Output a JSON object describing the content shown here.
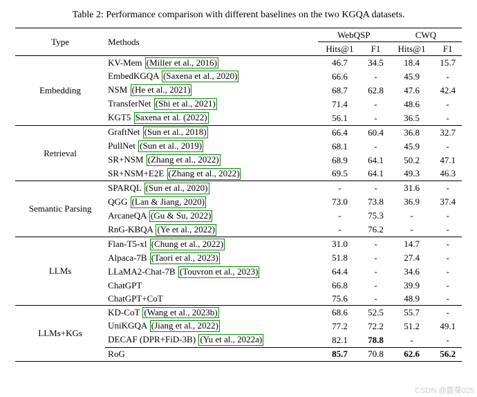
{
  "caption": "Table 2: Performance comparison with different baselines on the two KGQA datasets.",
  "header": {
    "type": "Type",
    "methods": "Methods",
    "websp": "WebQSP",
    "cwq": "CWQ",
    "hits": "Hits@1",
    "f1": "F1"
  },
  "types": {
    "embedding": "Embedding",
    "retrieval": "Retrieval",
    "semantic": "Semantic Parsing",
    "llms": "LLMs",
    "llmsKG": "LLMs+KGs"
  },
  "rows": {
    "kvmem": {
      "m": "KV-Mem",
      "c": "(Miller et al., 2016)",
      "wh": "46.7",
      "wf": "34.5",
      "ch": "18.4",
      "cf": "15.7"
    },
    "embed": {
      "m": "EmbedKGQA",
      "c": "(Saxena et al., 2020)",
      "wh": "66.6",
      "wf": "-",
      "ch": "45.9",
      "cf": "-"
    },
    "nsm": {
      "m": "NSM",
      "c": "(He et al., 2021)",
      "wh": "68.7",
      "wf": "62.8",
      "ch": "47.6",
      "cf": "42.4"
    },
    "transfer": {
      "m": "TransferNet",
      "c": "(Shi et al., 2021)",
      "wh": "71.4",
      "wf": "-",
      "ch": "48.6",
      "cf": "-"
    },
    "kgt5": {
      "m": "KGT5",
      "c": "Saxena et al. (2022)",
      "wh": "56.1",
      "wf": "-",
      "ch": "36.5",
      "cf": "-"
    },
    "graft": {
      "m": "GraftNet",
      "c": "(Sun et al., 2018)",
      "wh": "66.4",
      "wf": "60.4",
      "ch": "36.8",
      "cf": "32.7"
    },
    "pull": {
      "m": "PullNet",
      "c": "(Sun et al., 2019)",
      "wh": "68.1",
      "wf": "-",
      "ch": "45.9",
      "cf": "-"
    },
    "srnsm": {
      "m": "SR+NSM",
      "c": "(Zhang et al., 2022)",
      "wh": "68.9",
      "wf": "64.1",
      "ch": "50.2",
      "cf": "47.1"
    },
    "sre2e": {
      "m": "SR+NSM+E2E",
      "c": "(Zhang et al., 2022)",
      "wh": "69.5",
      "wf": "64.1",
      "ch": "49.3",
      "cf": "46.3"
    },
    "sparql": {
      "m": "SPARQL",
      "c": "(Sun et al., 2020)",
      "wh": "-",
      "wf": "-",
      "ch": "31.6",
      "cf": "-"
    },
    "qgg": {
      "m": "QGG",
      "c": "(Lan & Jiang, 2020)",
      "wh": "73.0",
      "wf": "73.8",
      "ch": "36.9",
      "cf": "37.4"
    },
    "arcane": {
      "m": "ArcaneQA",
      "c": "(Gu & Su, 2022)",
      "wh": "-",
      "wf": "75.3",
      "ch": "-",
      "cf": "-"
    },
    "rng": {
      "m": "RnG-KBQA",
      "c": "(Ye et al., 2022)",
      "wh": "-",
      "wf": "76.2",
      "ch": "-",
      "cf": "-"
    },
    "flan": {
      "m": "Flan-T5-xl",
      "c": "(Chung et al., 2022)",
      "wh": "31.0",
      "wf": "-",
      "ch": "14.7",
      "cf": "-"
    },
    "alpaca": {
      "m": "Alpaca-7B",
      "c": "(Taori et al., 2023)",
      "wh": "51.8",
      "wf": "-",
      "ch": "27.4",
      "cf": "-"
    },
    "llama": {
      "m": "LLaMA2-Chat-7B",
      "c": "(Touvron et al., 2023)",
      "wh": "64.4",
      "wf": "-",
      "ch": "34.6",
      "cf": "-"
    },
    "chatgpt": {
      "m": "ChatGPT",
      "c": "",
      "wh": "66.8",
      "wf": "-",
      "ch": "39.9",
      "cf": "-"
    },
    "cot": {
      "m": "ChatGPT+CoT",
      "c": "",
      "wh": "75.6",
      "wf": "-",
      "ch": "48.9",
      "cf": "-"
    },
    "kdcot": {
      "m": "KD-CoT",
      "c": "(Wang et al., 2023b)",
      "wh": "68.6",
      "wf": "52.5",
      "ch": "55.7",
      "cf": "-"
    },
    "unikg": {
      "m": "UniKGQA",
      "c": "(Jiang et al., 2022)",
      "wh": "77.2",
      "wf": "72.2",
      "ch": "51.2",
      "cf": "49.1"
    },
    "decaf": {
      "m": "DECAF (DPR+FiD-3B)",
      "c": "(Yu et al., 2022a)",
      "wh": "82.1",
      "wf": "78.8",
      "ch": "-",
      "cf": "-"
    },
    "rog": {
      "m": "RoG",
      "c": "",
      "wh": "85.7",
      "wf": "70.8",
      "ch": "62.6",
      "cf": "56.2"
    }
  },
  "watermark": "CSDN @露葵025",
  "style": {
    "cite_border_color": "#0b8a0b",
    "rule_color": "#000000"
  }
}
